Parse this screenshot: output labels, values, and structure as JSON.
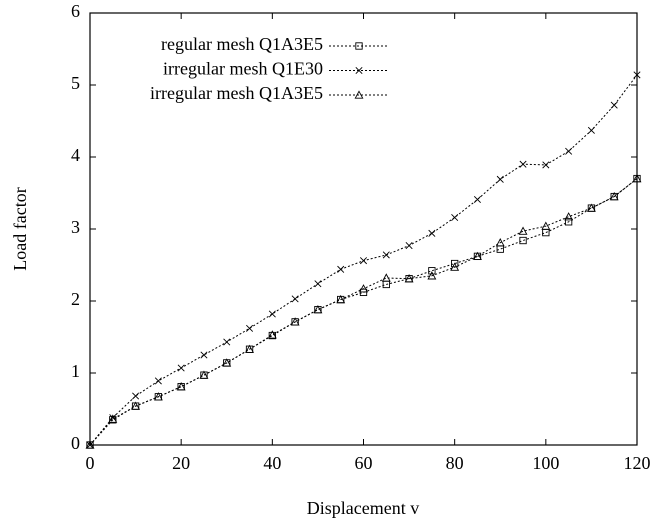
{
  "chart_data": {
    "type": "line",
    "xlabel": "Displacement v",
    "ylabel": "Load factor",
    "x": [
      0,
      5,
      10,
      15,
      20,
      25,
      30,
      35,
      40,
      45,
      50,
      55,
      60,
      65,
      70,
      75,
      80,
      85,
      90,
      95,
      100,
      105,
      110,
      115,
      120
    ],
    "series": [
      {
        "name": "regular mesh Q1A3E5",
        "color": "#000000",
        "marker": "square",
        "values": [
          0,
          0.35,
          0.54,
          0.67,
          0.81,
          0.97,
          1.14,
          1.33,
          1.52,
          1.71,
          1.88,
          2.02,
          2.12,
          2.23,
          2.31,
          2.42,
          2.52,
          2.62,
          2.72,
          2.84,
          2.95,
          3.1,
          3.29,
          3.45,
          3.7
        ]
      },
      {
        "name": "irregular mesh Q1E30",
        "color": "#000000",
        "marker": "x",
        "values": [
          0,
          0.38,
          0.68,
          0.89,
          1.07,
          1.25,
          1.43,
          1.62,
          1.82,
          2.03,
          2.24,
          2.44,
          2.56,
          2.64,
          2.77,
          2.94,
          3.16,
          3.41,
          3.69,
          3.9,
          3.89,
          4.08,
          4.37,
          4.72,
          5.14
        ]
      },
      {
        "name": "irregular mesh Q1A3E5",
        "color": "#000000",
        "marker": "triangle",
        "values": [
          0,
          0.36,
          0.54,
          0.67,
          0.81,
          0.97,
          1.14,
          1.33,
          1.53,
          1.71,
          1.88,
          2.02,
          2.17,
          2.32,
          2.31,
          2.35,
          2.47,
          2.62,
          2.81,
          2.97,
          3.04,
          3.17,
          3.29,
          3.45,
          3.7
        ]
      }
    ],
    "xlim": [
      0,
      120
    ],
    "xticks": [
      0,
      20,
      40,
      60,
      80,
      100,
      120
    ],
    "ylim": [
      0,
      6
    ],
    "yticks": [
      0,
      1,
      2,
      3,
      4,
      5,
      6
    ],
    "legend": "upper left"
  }
}
